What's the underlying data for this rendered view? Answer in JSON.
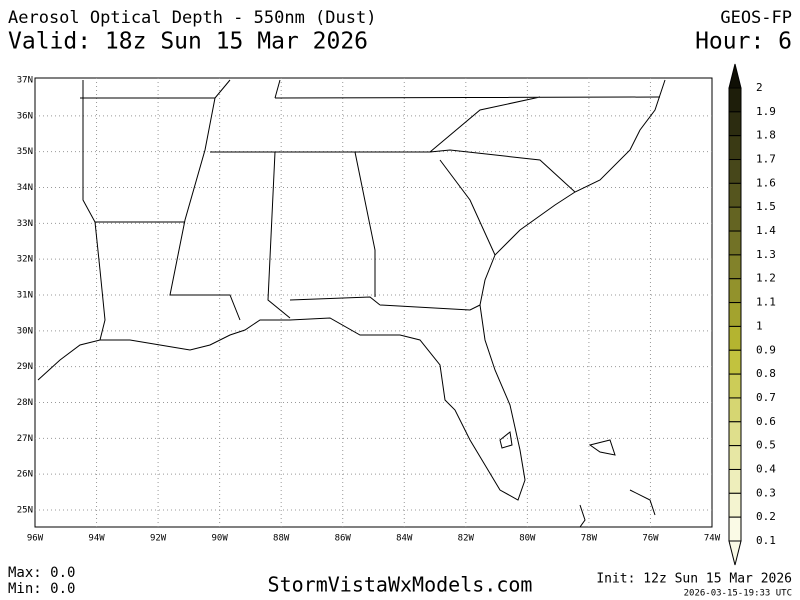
{
  "header": {
    "title": "Aerosol Optical Depth - 550nm (Dust)",
    "valid": "Valid: 18z Sun 15 Mar 2026",
    "model": "GEOS-FP",
    "hour": "Hour: 6"
  },
  "map": {
    "lat_labels": [
      "37N",
      "36N",
      "35N",
      "34N",
      "33N",
      "32N",
      "31N",
      "30N",
      "29N",
      "28N",
      "27N",
      "26N",
      "25N"
    ],
    "lon_labels": [
      "96W",
      "94W",
      "92W",
      "90W",
      "88W",
      "86W",
      "84W",
      "82W",
      "80W",
      "78W",
      "76W",
      "74W"
    ]
  },
  "colorbar": {
    "labels": [
      "2",
      "1.9",
      "1.8",
      "1.7",
      "1.6",
      "1.5",
      "1.4",
      "1.3",
      "1.2",
      "1.1",
      "1",
      "0.9",
      "0.8",
      "0.7",
      "0.6",
      "0.5",
      "0.4",
      "0.3",
      "0.2",
      "0.1"
    ],
    "colors": [
      "#0f0f05",
      "#1e1e0a",
      "#2c2c10",
      "#3a3a14",
      "#47471a",
      "#55551e",
      "#646422",
      "#727226",
      "#82822a",
      "#92922c",
      "#a3a32e",
      "#b4b430",
      "#c2c23e",
      "#cccc58",
      "#d6d672",
      "#dfdf8c",
      "#e7e7a4",
      "#eeeebb",
      "#f4f4d0",
      "#fafae6"
    ]
  },
  "footer": {
    "max": "Max: 0.0",
    "min": "Min: 0.0",
    "site": "StormVistaWxModels.com",
    "init": "Init: 12z Sun 15 Mar 2026",
    "stamp": "2026-03-15-19:33 UTC"
  }
}
